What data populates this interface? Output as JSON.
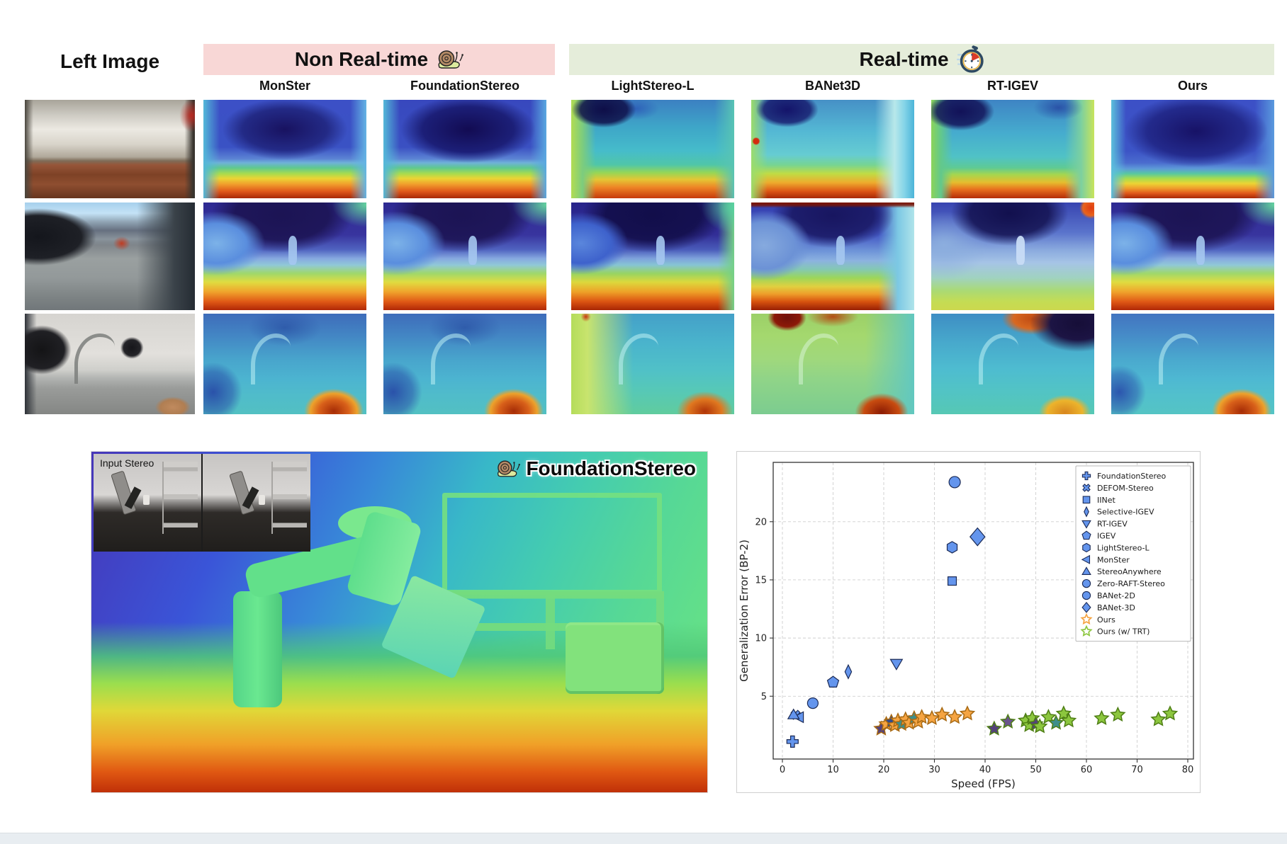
{
  "header": {
    "left_image_label": "Left Image",
    "groups": [
      {
        "label": "Non Real-time",
        "icon": "snail-icon",
        "bg": "#F8D7D6"
      },
      {
        "label": "Real-time",
        "icon": "stopwatch-icon",
        "bg": "#E5EDDA"
      }
    ],
    "columns": [
      {
        "label": "MonSter"
      },
      {
        "label": "FoundationStereo"
      },
      {
        "label": "LightStereo-L"
      },
      {
        "label": "BANet3D"
      },
      {
        "label": "RT-IGEV"
      },
      {
        "label": "Ours"
      }
    ]
  },
  "bottom_left": {
    "inset_label": "Input Stereo",
    "method_label": "FoundationStereo",
    "icon": "snail-icon"
  },
  "chart_data": {
    "type": "scatter",
    "title": "",
    "xlabel": "Speed (FPS)",
    "ylabel": "Generalization Error (BP-2)",
    "xlim": [
      -2,
      82
    ],
    "ylim": [
      -0.4,
      25.1
    ],
    "xticks": [
      0,
      10,
      20,
      30,
      40,
      50,
      60,
      70,
      80
    ],
    "yticks": [
      5,
      10,
      15,
      20
    ],
    "grid": "dashed",
    "legend_position": "upper right",
    "marker_fill": "#6495ED",
    "marker_edge": "#1b2a55",
    "series": [
      {
        "name": "FoundationStereo",
        "marker": "plus",
        "color": "#6495ED",
        "edge": "#1b2a55",
        "size": 8,
        "points": [
          [
            2,
            1.1
          ]
        ]
      },
      {
        "name": "DEFOM-Stereo",
        "marker": "x",
        "color": "#6495ED",
        "edge": "#1b2a55",
        "size": 7,
        "points": [
          [
            2.6,
            3.4
          ]
        ]
      },
      {
        "name": "IINet",
        "marker": "square",
        "color": "#6495ED",
        "edge": "#1b2a55",
        "size": 7,
        "points": [
          [
            33.5,
            14.9
          ]
        ]
      },
      {
        "name": "Selective-IGEV",
        "marker": "thin-diamond",
        "color": "#6495ED",
        "edge": "#1b2a55",
        "size": 8,
        "points": [
          [
            13,
            7.1
          ]
        ]
      },
      {
        "name": "RT-IGEV",
        "marker": "triangle-down",
        "color": "#6495ED",
        "edge": "#1b2a55",
        "size": 8,
        "points": [
          [
            22.5,
            7.8
          ]
        ]
      },
      {
        "name": "IGEV",
        "marker": "pentagon",
        "color": "#6495ED",
        "edge": "#1b2a55",
        "size": 7.5,
        "points": [
          [
            10,
            6.2
          ]
        ]
      },
      {
        "name": "LightStereo-L",
        "marker": "hexagon",
        "color": "#6495ED",
        "edge": "#1b2a55",
        "size": 7.5,
        "points": [
          [
            33.5,
            17.8
          ]
        ]
      },
      {
        "name": "MonSter",
        "marker": "triangle-left",
        "color": "#6495ED",
        "edge": "#1b2a55",
        "size": 7.5,
        "points": [
          [
            3.3,
            3.2
          ]
        ]
      },
      {
        "name": "StereoAnywhere",
        "marker": "triangle-up",
        "color": "#6495ED",
        "edge": "#1b2a55",
        "size": 7.5,
        "points": [
          [
            2.2,
            3.4
          ]
        ]
      },
      {
        "name": "Zero-RAFT-Stereo",
        "marker": "circle",
        "color": "#6495ED",
        "edge": "#1b2a55",
        "size": 7.5,
        "points": [
          [
            6,
            4.4
          ]
        ]
      },
      {
        "name": "BANet-2D",
        "marker": "circle",
        "color": "#6495ED",
        "edge": "#1b2a55",
        "size": 8,
        "points": [
          [
            34,
            23.4
          ]
        ]
      },
      {
        "name": "BANet-3D",
        "marker": "diamond",
        "color": "#6495ED",
        "edge": "#1b2a55",
        "size": 10,
        "points": [
          [
            38.5,
            18.7
          ]
        ]
      },
      {
        "name": "Ours",
        "marker": "star",
        "color": "#F5A442",
        "edge": "#A86A14",
        "legend_fill": "none",
        "size": 10,
        "points": [
          [
            19.5,
            2.2,
            "#54427A"
          ],
          [
            20.5,
            2.6
          ],
          [
            21.5,
            2.8,
            "#2E4A8E"
          ],
          [
            22.2,
            2.5
          ],
          [
            22.8,
            2.9
          ],
          [
            23.5,
            2.6,
            "#3E8E8A"
          ],
          [
            24.3,
            3.0
          ],
          [
            25,
            2.7
          ],
          [
            26,
            3.1,
            "#3E8E8A"
          ],
          [
            26.8,
            2.8
          ],
          [
            27.5,
            3.2
          ],
          [
            29.5,
            3.1
          ],
          [
            31.5,
            3.4
          ],
          [
            34,
            3.2
          ],
          [
            36.5,
            3.5
          ]
        ]
      },
      {
        "name": "Ours (w/ TRT)",
        "marker": "star",
        "color": "#8CC63E",
        "edge": "#4E7E14",
        "legend_fill": "none",
        "size": 10,
        "points": [
          [
            41.8,
            2.2,
            "#54427A"
          ],
          [
            44.5,
            2.8,
            "#6A548E"
          ],
          [
            48,
            2.9
          ],
          [
            48.7,
            2.5
          ],
          [
            49.3,
            3.1
          ],
          [
            50,
            2.6,
            "#54427A"
          ],
          [
            50.8,
            2.4
          ],
          [
            52.5,
            3.2
          ],
          [
            54,
            2.7,
            "#3E8E8A"
          ],
          [
            55.5,
            3.5
          ],
          [
            56.5,
            2.9
          ],
          [
            63,
            3.1
          ],
          [
            66.2,
            3.4
          ],
          [
            74.2,
            3.0
          ],
          [
            76.5,
            3.5
          ]
        ]
      }
    ]
  }
}
